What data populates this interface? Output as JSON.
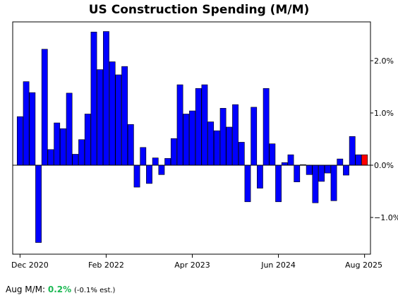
{
  "chart_data": {
    "type": "bar",
    "title": "US Construction Spending (M/M)",
    "xlabel": "",
    "ylabel": "",
    "x_start": "Dec 2020",
    "x_end": "Aug 2025",
    "x_tick_labels": [
      "Dec 2020",
      "Feb 2022",
      "Apr 2023",
      "Jun 2024",
      "Aug 2025"
    ],
    "y_tick_labels": [
      "2.0%",
      "1.0%",
      "0.0%",
      "−1.0%"
    ],
    "y_ticks": [
      2.0,
      1.0,
      0.0,
      -1.0
    ],
    "ylim": [
      -1.7,
      2.6
    ],
    "y_axis_side": "right",
    "grid": false,
    "legend": "none",
    "bar_color": "#0000ff",
    "highlight_color": "#ff0000",
    "series": [
      {
        "values": [
          0.93,
          1.6,
          1.39,
          -1.48,
          2.22,
          0.3,
          0.81,
          0.7,
          1.38,
          0.21,
          0.49,
          0.98,
          2.55,
          1.83,
          2.56,
          1.98,
          1.73,
          1.89,
          0.78,
          -0.42,
          0.34,
          -0.35,
          0.14,
          -0.18,
          0.13,
          0.51,
          1.54,
          0.98,
          1.04,
          1.47,
          1.54,
          0.83,
          0.66,
          1.09,
          0.73,
          1.16,
          0.44,
          -0.7,
          1.11,
          -0.44,
          1.47,
          0.41,
          -0.7,
          0.05,
          0.2,
          -0.32,
          0.01,
          -0.18,
          -0.72,
          -0.31,
          -0.15,
          -0.68,
          0.12,
          -0.19,
          0.55,
          0.2,
          0.2
        ]
      }
    ],
    "highlight_last": true
  },
  "footer": {
    "label": "Aug M/M:",
    "actual": "0.2%",
    "estimate": "(-0.1% est.)"
  }
}
